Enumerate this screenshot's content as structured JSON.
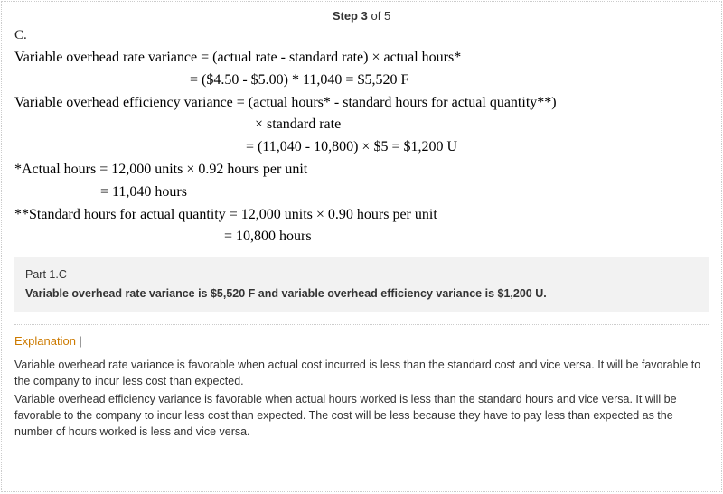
{
  "step": {
    "prefix": "Step ",
    "current": "3",
    "sep": " of ",
    "total": "5"
  },
  "partLabel": "C.",
  "formula": {
    "l1": "Variable overhead rate variance = (actual rate - standard rate) × actual hours*",
    "l2": "= ($4.50 - $5.00) * 11,040 = $5,520 F",
    "l3": "Variable overhead efficiency variance = (actual hours* - standard hours for actual quantity**)",
    "l4": "× standard rate",
    "l5": "= (11,040 - 10,800) × $5 = $1,200 U",
    "l6": "*Actual hours = 12,000 units × 0.92 hours per unit",
    "l7": "= 11,040 hours",
    "l8": "**Standard hours for actual quantity = 12,000 units × 0.90 hours per unit",
    "l9": "= 10,800 hours"
  },
  "summary": {
    "title": "Part 1.C",
    "text": "Variable overhead rate variance is $5,520 F and variable overhead efficiency variance is $1,200 U."
  },
  "explanation": {
    "label": "Explanation",
    "pipe": " | ",
    "p1": "Variable overhead rate variance is favorable when actual cost incurred is less than the standard cost and vice versa. It will be favorable to the company to incur less cost than expected.",
    "p2": "Variable overhead efficiency variance is favorable when actual hours worked is less than the standard hours and vice versa. It will be favorable to the company to incur less cost than expected. The cost will be less because they have to pay less than expected as the number of hours worked is less and vice versa."
  },
  "colors": {
    "border": "#cccccc",
    "text": "#333333",
    "formulaText": "#000000",
    "summaryBg": "#f2f2f2",
    "explanationLabel": "#cc7a00"
  }
}
